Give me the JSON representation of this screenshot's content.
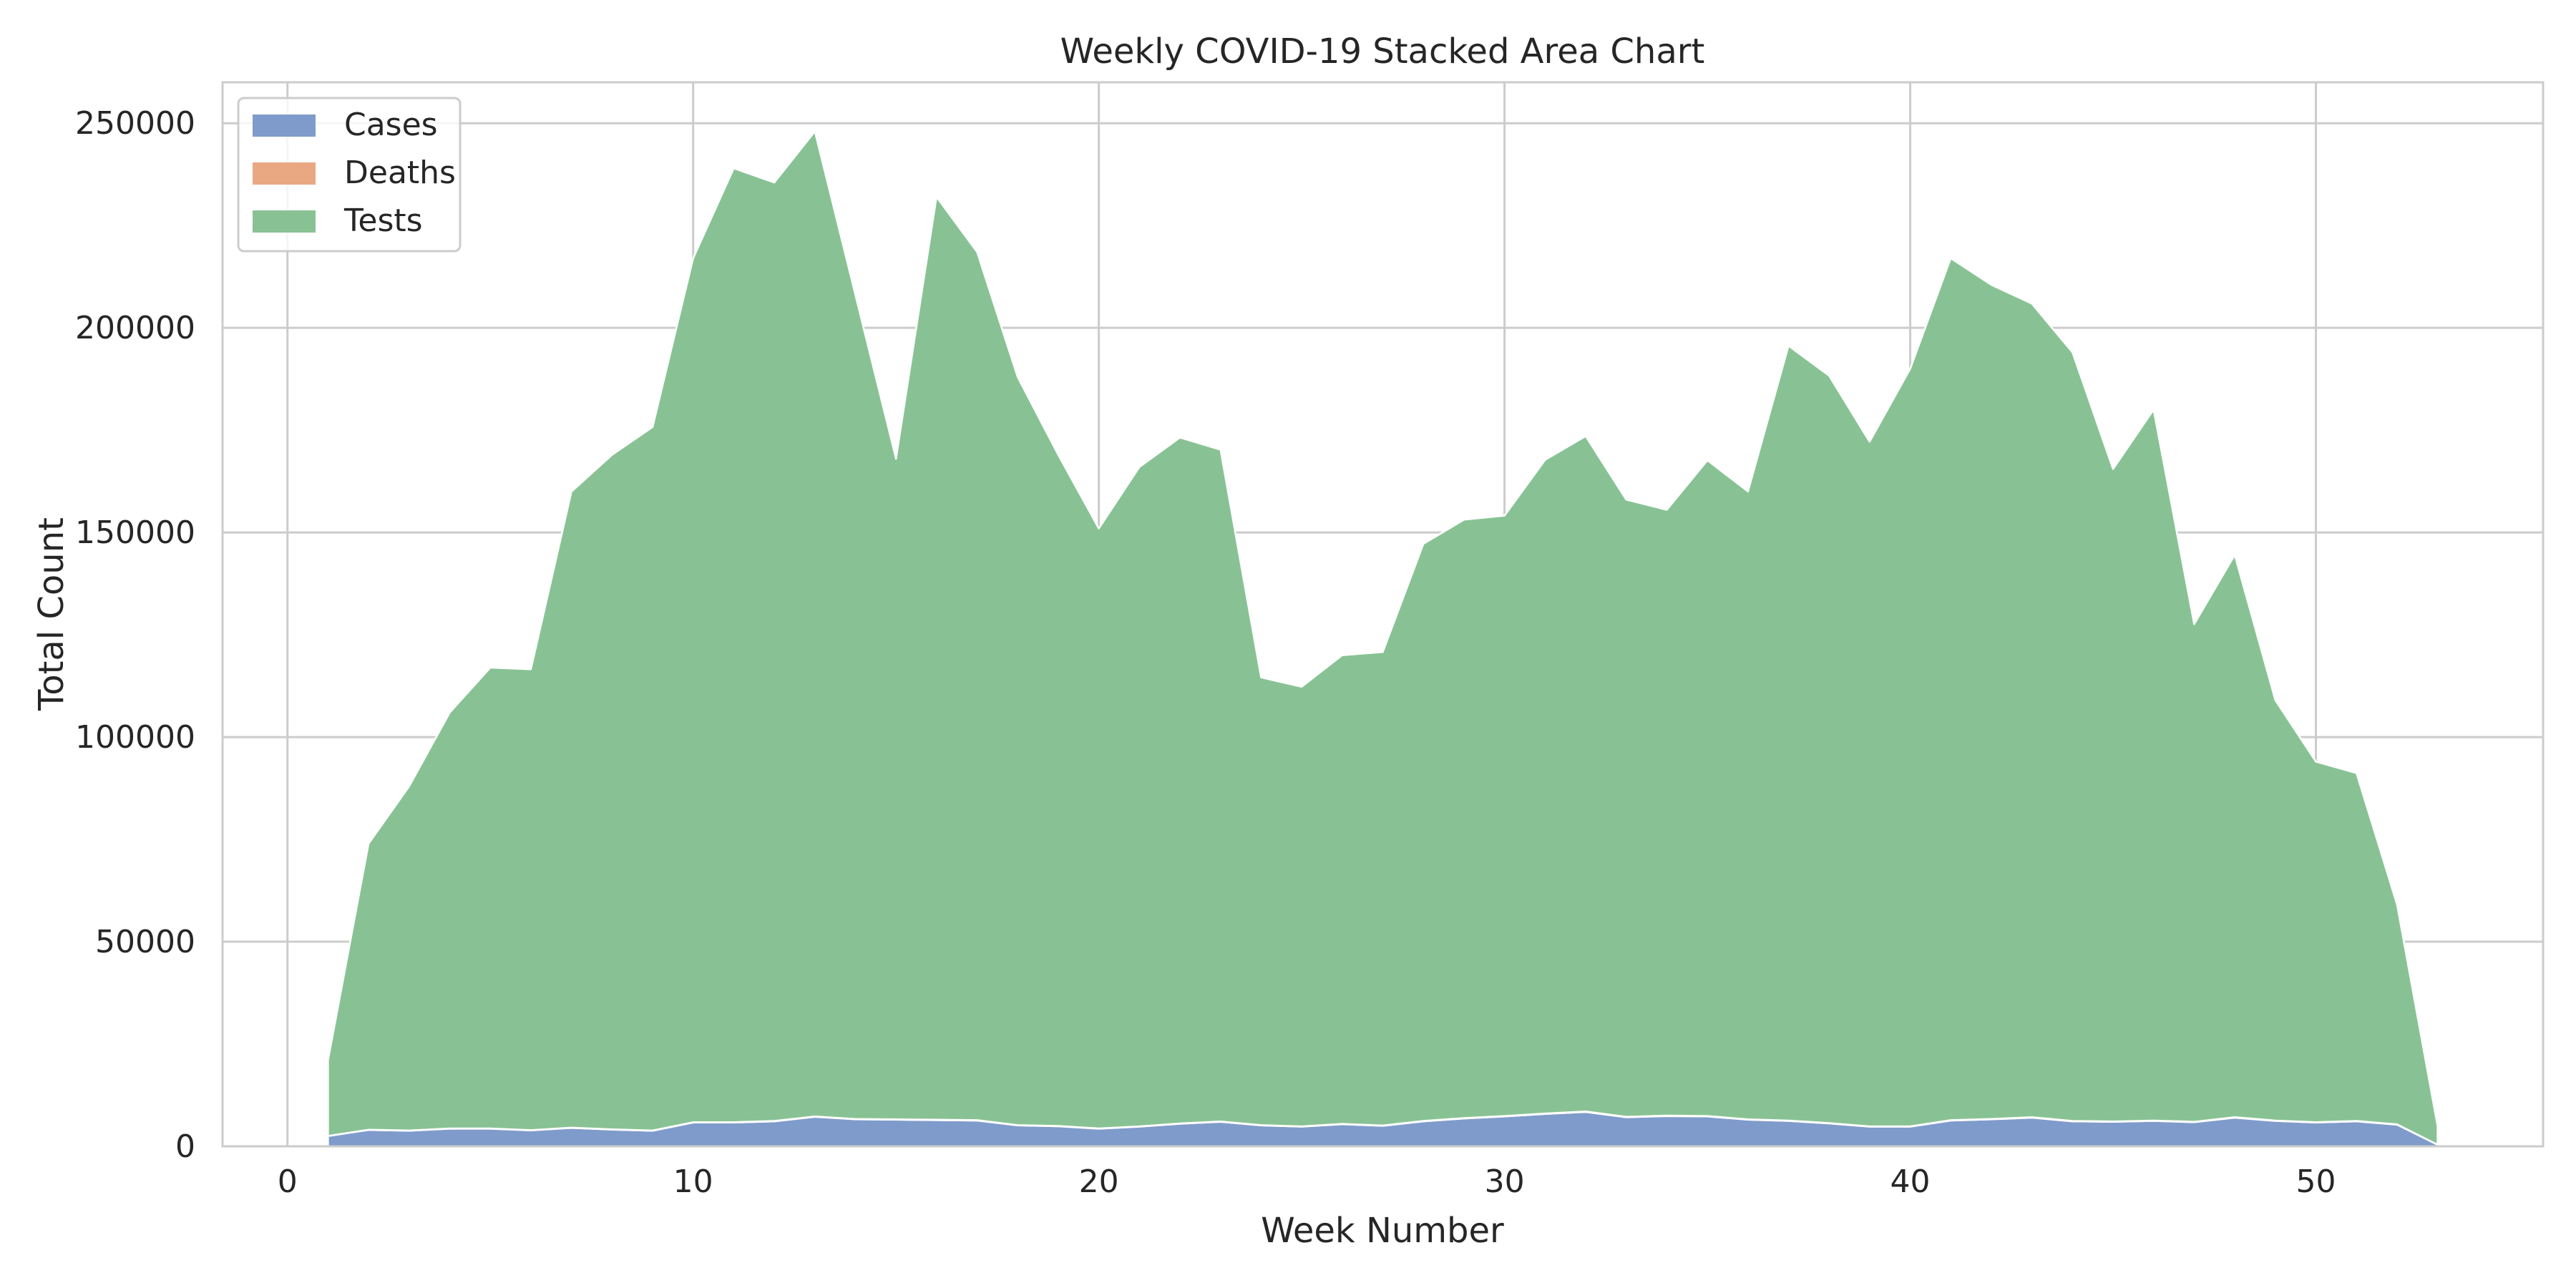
{
  "chart_data": {
    "type": "area",
    "stacked": true,
    "title": "Weekly COVID-19 Stacked Area Chart",
    "xlabel": "Week Number",
    "ylabel": "Total Count",
    "xlim": [
      -1.6,
      55.6
    ],
    "ylim": [
      0,
      260000
    ],
    "xticks": [
      0,
      10,
      20,
      30,
      40,
      50
    ],
    "yticks": [
      0,
      50000,
      100000,
      150000,
      200000,
      250000
    ],
    "grid": true,
    "legend_position": "upper-left",
    "x": [
      1,
      2,
      3,
      4,
      5,
      6,
      7,
      8,
      9,
      10,
      11,
      12,
      13,
      14,
      15,
      16,
      17,
      18,
      19,
      20,
      21,
      22,
      23,
      24,
      25,
      26,
      27,
      28,
      29,
      30,
      31,
      32,
      33,
      34,
      35,
      36,
      37,
      38,
      39,
      40,
      41,
      42,
      43,
      44,
      45,
      46,
      47,
      48,
      49,
      50,
      51,
      52,
      53
    ],
    "series": [
      {
        "name": "Cases",
        "color": "#7f9bcb",
        "values": [
          2500,
          4000,
          3800,
          4300,
          4300,
          3900,
          4500,
          4100,
          3800,
          5800,
          5800,
          6100,
          7200,
          6600,
          6500,
          6400,
          6300,
          5100,
          4900,
          4300,
          4800,
          5500,
          6000,
          5100,
          4800,
          5400,
          5000,
          6100,
          6800,
          7300,
          7900,
          8400,
          7100,
          7400,
          7300,
          6500,
          6200,
          5600,
          4800,
          4800,
          6300,
          6600,
          7000,
          6100,
          6000,
          6200,
          5900,
          7000,
          6200,
          5800,
          6100,
          5300,
          400
        ]
      },
      {
        "name": "Deaths",
        "color": "#e9a882",
        "values": [
          40,
          60,
          60,
          70,
          70,
          60,
          70,
          60,
          60,
          90,
          90,
          100,
          110,
          100,
          100,
          100,
          100,
          80,
          80,
          70,
          80,
          90,
          90,
          80,
          80,
          90,
          80,
          100,
          110,
          120,
          130,
          130,
          110,
          120,
          120,
          100,
          100,
          90,
          80,
          80,
          100,
          100,
          110,
          100,
          90,
          100,
          90,
          110,
          100,
          90,
          100,
          80,
          10
        ]
      },
      {
        "name": "Tests",
        "color": "#88c294",
        "values": [
          18500,
          69900,
          84100,
          101600,
          112600,
          112600,
          155400,
          164800,
          171900,
          211100,
          233100,
          229300,
          240700,
          201300,
          161400,
          225500,
          212100,
          182800,
          164000,
          146600,
          161100,
          167600,
          164100,
          109400,
          107400,
          114500,
          115700,
          141000,
          146200,
          146700,
          159700,
          165000,
          150800,
          148000,
          160200,
          153400,
          189300,
          182600,
          167300,
          185100,
          210600,
          203800,
          198800,
          187800,
          159400,
          173700,
          121600,
          137400,
          102700,
          88100,
          85000,
          53700,
          4500
        ]
      }
    ]
  }
}
